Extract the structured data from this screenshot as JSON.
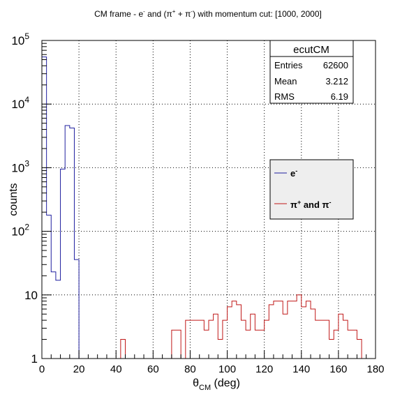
{
  "chart_data": {
    "type": "histogram",
    "title_main": "CM frame - e",
    "title_e_sup": "-",
    "title_mid": " and (π",
    "title_pip_sup": "+",
    "title_plus": " + π",
    "title_pim_sup": "-",
    "title_tail": ") with momentum cut: [1000, 2000]",
    "xlabel_main": "θ",
    "xlabel_sub": "CM",
    "xlabel_unit": " (deg)",
    "ylabel": "counts",
    "x_range": [
      0,
      180
    ],
    "y_range": [
      1,
      100000
    ],
    "y_scale": "log",
    "grid": true,
    "bin_width": 2.5,
    "x_ticks": [
      "0",
      "20",
      "40",
      "60",
      "80",
      "100",
      "120",
      "140",
      "160",
      "180"
    ],
    "y_ticks": [
      {
        "base": "1",
        "exp": ""
      },
      {
        "base": "10",
        "exp": ""
      },
      {
        "base": "10",
        "exp": "2"
      },
      {
        "base": "10",
        "exp": "3"
      },
      {
        "base": "10",
        "exp": "4"
      },
      {
        "base": "10",
        "exp": "5"
      }
    ],
    "series": [
      {
        "name": "e",
        "name_sup": "-",
        "color": "#1f1f9f",
        "x_start": 0,
        "values": [
          55000,
          180,
          23,
          17,
          950,
          4600,
          4200,
          36,
          1
        ]
      },
      {
        "name": "π",
        "name_sup": "+",
        "name_rest": " and π",
        "name_rest_sup": "-",
        "color": "#c01818",
        "x_start": 0,
        "values": [
          1,
          1,
          1,
          1,
          1,
          1,
          1,
          1,
          1,
          1,
          1,
          1,
          1,
          1,
          1,
          1,
          1,
          2,
          1,
          1,
          1,
          1,
          1,
          1,
          1,
          1,
          1,
          1,
          2.8,
          2.8,
          1,
          4,
          4,
          4,
          4,
          2.8,
          4,
          5,
          2,
          4,
          6.5,
          8,
          7,
          4,
          2.8,
          5,
          2.8,
          2.8,
          4,
          7,
          8,
          8,
          5,
          8,
          8,
          10,
          6.5,
          8,
          6,
          4,
          4,
          4,
          2,
          2.8,
          5,
          4,
          2.8,
          2.8,
          2,
          1,
          1,
          1
        ]
      }
    ],
    "stats_box": {
      "title": "ecutCM",
      "rows": [
        {
          "label": "Entries",
          "value": "62600"
        },
        {
          "label": "Mean",
          "value": "3.212"
        },
        {
          "label": "RMS",
          "value": "6.19"
        }
      ]
    },
    "legend_position": "right"
  }
}
